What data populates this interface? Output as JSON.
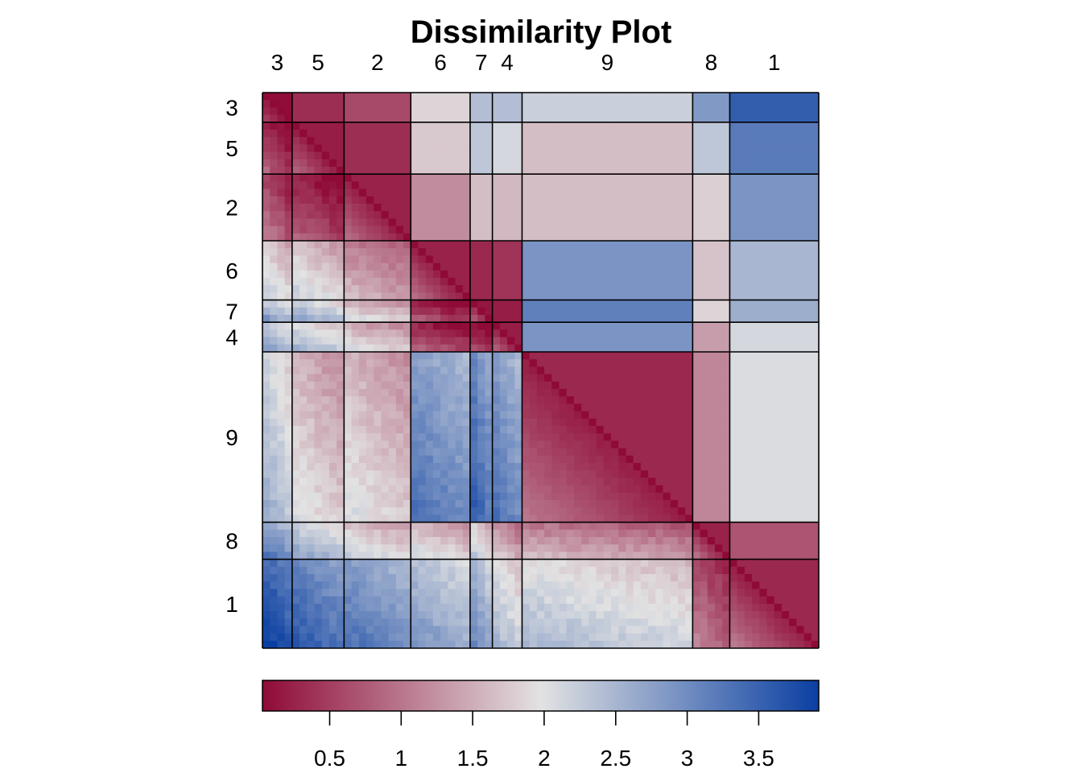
{
  "chart_data": {
    "type": "heatmap",
    "title": "Dissimilarity Plot",
    "clusters": [
      "3",
      "5",
      "2",
      "6",
      "7",
      "4",
      "9",
      "8",
      "1"
    ],
    "cluster_sizes": [
      4,
      7,
      9,
      8,
      3,
      4,
      23,
      5,
      12
    ],
    "lower_triangle": "individual dissimilarities (sorted within clusters)",
    "upper_triangle": "cluster-average dissimilarities",
    "cluster_dissimilarity_matrix": [
      [
        0.05,
        0.35,
        0.6,
        1.85,
        2.4,
        2.4,
        2.2,
        2.85,
        3.55
      ],
      [
        0.35,
        0.2,
        0.35,
        1.75,
        2.3,
        2.1,
        1.65,
        2.3,
        3.2
      ],
      [
        0.6,
        0.35,
        0.25,
        1.2,
        1.65,
        1.6,
        1.65,
        1.8,
        2.9
      ],
      [
        1.85,
        1.75,
        1.2,
        0.25,
        0.3,
        0.4,
        2.9,
        1.7,
        2.5
      ],
      [
        2.4,
        2.3,
        1.65,
        0.3,
        0.15,
        0.2,
        3.15,
        1.85,
        2.6
      ],
      [
        2.4,
        2.1,
        1.6,
        0.4,
        0.2,
        0.2,
        2.9,
        1.35,
        2.1
      ],
      [
        2.2,
        1.65,
        1.65,
        2.9,
        3.15,
        2.9,
        0.3,
        1.15,
        2.05
      ],
      [
        2.85,
        2.3,
        1.8,
        1.7,
        1.85,
        1.35,
        1.15,
        0.25,
        0.7
      ],
      [
        3.55,
        3.2,
        2.9,
        2.5,
        2.6,
        2.1,
        2.05,
        0.7,
        0.3
      ]
    ],
    "colorbar": {
      "range": [
        0.03,
        3.92
      ],
      "ticks": [
        "0.5",
        "1",
        "1.5",
        "2",
        "2.5",
        "3",
        "3.5"
      ],
      "tick_values": [
        0.5,
        1,
        1.5,
        2,
        2.5,
        3,
        3.5
      ],
      "colors": [
        "#8f0a37",
        "#e2e2e2",
        "#0a3fa2"
      ]
    },
    "grid": false
  }
}
